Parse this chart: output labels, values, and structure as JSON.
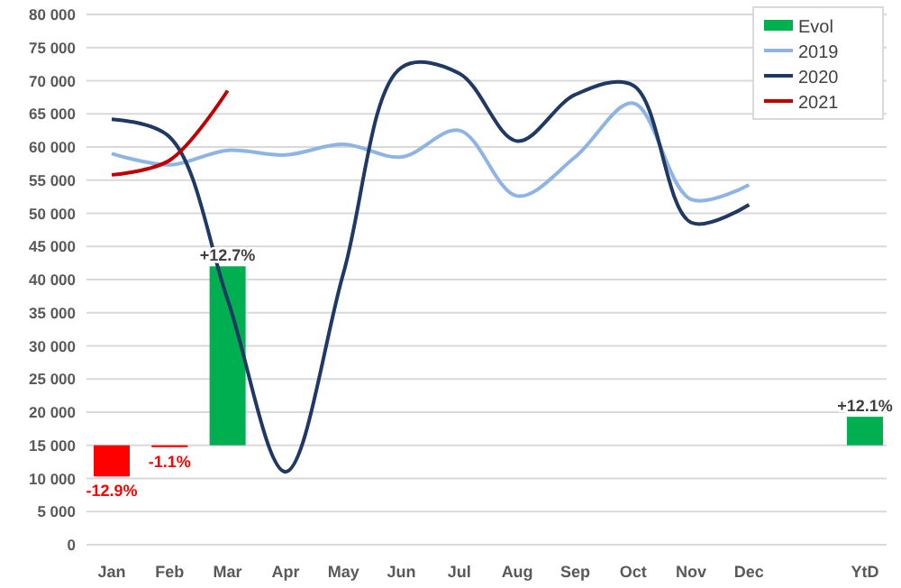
{
  "chart_data": {
    "type": "line",
    "categories": [
      "Jan",
      "Feb",
      "Mar",
      "Apr",
      "May",
      "Jun",
      "Jul",
      "Aug",
      "Sep",
      "Oct",
      "Nov",
      "Dec",
      null,
      "YtD"
    ],
    "ylim": [
      0,
      80000
    ],
    "yticks": [
      {
        "value": 0,
        "label": "0"
      },
      {
        "value": 5000,
        "label": "5 000"
      },
      {
        "value": 10000,
        "label": "10 000"
      },
      {
        "value": 15000,
        "label": "15 000"
      },
      {
        "value": 20000,
        "label": "20 000"
      },
      {
        "value": 25000,
        "label": "25 000"
      },
      {
        "value": 30000,
        "label": "30 000"
      },
      {
        "value": 35000,
        "label": "35 000"
      },
      {
        "value": 40000,
        "label": "40 000"
      },
      {
        "value": 45000,
        "label": "45 000"
      },
      {
        "value": 50000,
        "label": "50 000"
      },
      {
        "value": 55000,
        "label": "55 000"
      },
      {
        "value": 60000,
        "label": "60 000"
      },
      {
        "value": 65000,
        "label": "65 000"
      },
      {
        "value": 70000,
        "label": "70 000"
      },
      {
        "value": 75000,
        "label": "75 000"
      },
      {
        "value": 80000,
        "label": "80 000"
      }
    ],
    "grid": "y",
    "legend": "top right",
    "marker": "none",
    "line_style": "solid",
    "annotations": [
      {
        "text": "-12.9%",
        "x": "Jan",
        "y": 10300
      },
      {
        "text": "-1.1%",
        "x": "Feb",
        "y": 14700
      },
      {
        "text": "+12.7%",
        "x": "Mar",
        "y": 42000
      },
      {
        "text": "+12.1%",
        "x": "YtD",
        "y": 19300
      }
    ],
    "series": [
      {
        "name": "Evol",
        "type": "bar",
        "color": "#00b050",
        "colors": [
          "#ff0000",
          "#ff0000",
          "#00b050",
          null,
          null,
          null,
          null,
          null,
          null,
          null,
          null,
          null,
          null,
          "#00b050"
        ],
        "base": [
          15000,
          15000,
          15000,
          null,
          null,
          null,
          null,
          null,
          null,
          null,
          null,
          null,
          null,
          15000
        ],
        "values": [
          -4700,
          -300,
          27000,
          null,
          null,
          null,
          null,
          null,
          null,
          null,
          null,
          null,
          null,
          4300
        ]
      },
      {
        "name": "2019",
        "color": "#8eb4e3",
        "values": [
          59000,
          57300,
          59500,
          58800,
          60400,
          58500,
          62500,
          52600,
          58500,
          66600,
          52100,
          54300,
          null,
          null
        ]
      },
      {
        "name": "2020",
        "color": "#1f3864",
        "values": [
          64200,
          61500,
          37000,
          11000,
          41000,
          72000,
          71100,
          60900,
          67900,
          69300,
          48600,
          51300,
          null,
          null
        ]
      },
      {
        "name": "2021",
        "color": "#c00000",
        "values": [
          55800,
          58000,
          68500,
          null,
          null,
          null,
          null,
          null,
          null,
          null,
          null,
          null,
          null,
          null
        ]
      }
    ]
  }
}
